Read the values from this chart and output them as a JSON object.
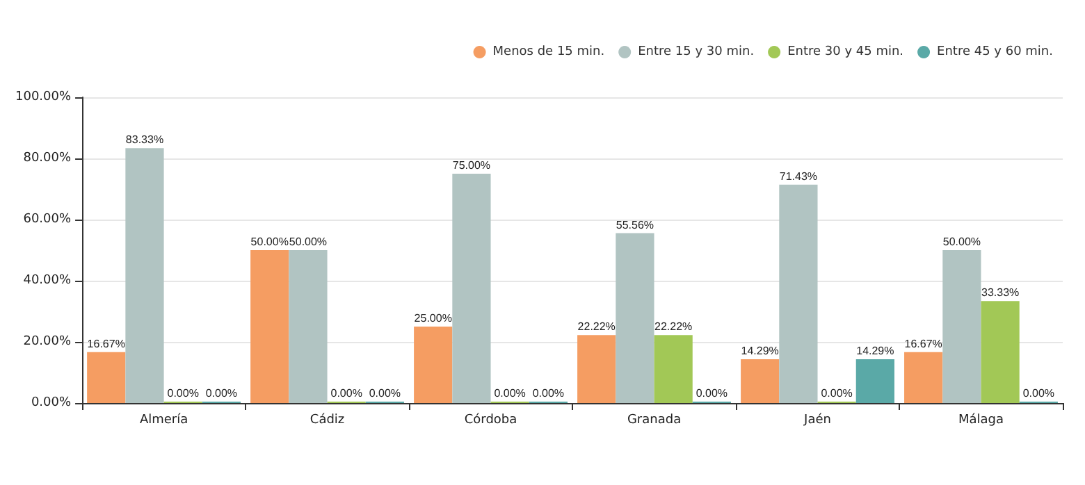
{
  "chart_data": {
    "type": "bar",
    "categories": [
      "Almería",
      "Cádiz",
      "Córdoba",
      "Granada",
      "Jaén",
      "Málaga"
    ],
    "series": [
      {
        "name": "Menos de 15 min.",
        "color": "#f59d62",
        "values": [
          16.67,
          50,
          25,
          22.22,
          14.29,
          16.67
        ],
        "value_labels": [
          "16.67%",
          "50.00%",
          "25.00%",
          "22.22%",
          "14.29%",
          "16.67%"
        ]
      },
      {
        "name": "Entre 15 y 30 min.",
        "color": "#b1c4c2",
        "values": [
          83.33,
          50,
          75,
          55.56,
          71.43,
          50
        ],
        "value_labels": [
          "83.33%",
          "50.00%",
          "75.00%",
          "55.56%",
          "71.43%",
          "50.00%"
        ]
      },
      {
        "name": "Entre 30 y 45 min.",
        "color": "#a2c856",
        "values": [
          0,
          0,
          0,
          22.22,
          0,
          33.33
        ],
        "value_labels": [
          "0.00%",
          "0.00%",
          "0.00%",
          "22.22%",
          "0.00%",
          "33.33%"
        ]
      },
      {
        "name": "Entre 45 y 60 min.",
        "color": "#5aa9a7",
        "values": [
          0,
          0,
          0,
          0,
          14.29,
          0
        ],
        "value_labels": [
          "0.00%",
          "0.00%",
          "0.00%",
          "0.00%",
          "14.29%",
          "0.00%"
        ]
      }
    ],
    "ylim": [
      0,
      100
    ],
    "yticks": [
      {
        "value": 0,
        "label": "0.00%"
      },
      {
        "value": 20,
        "label": "20.00%"
      },
      {
        "value": 40,
        "label": "40.00%"
      },
      {
        "value": 60,
        "label": "60.00%"
      },
      {
        "value": 80,
        "label": "80.00%"
      },
      {
        "value": 100,
        "label": "100.00%"
      }
    ],
    "grid": "y",
    "legend": "top right"
  }
}
